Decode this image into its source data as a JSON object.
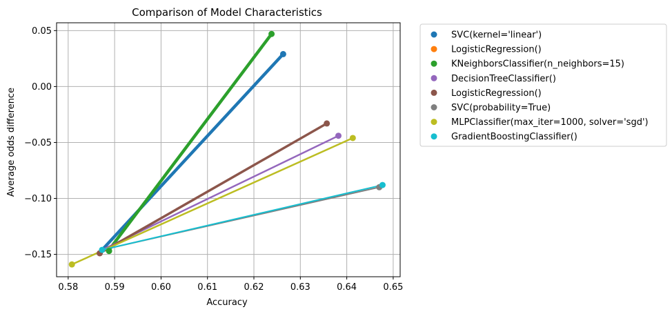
{
  "chart_data": {
    "type": "scatter",
    "title": "Comparison of Model Characteristics",
    "xlabel": "Accuracy",
    "ylabel": "Average odds difference",
    "xlim": [
      0.5775,
      0.6515
    ],
    "ylim": [
      -0.17,
      0.057
    ],
    "xticks": [
      0.58,
      0.59,
      0.6,
      0.61,
      0.62,
      0.63,
      0.64,
      0.65
    ],
    "xtick_labels": [
      "0.58",
      "0.59",
      "0.60",
      "0.61",
      "0.62",
      "0.63",
      "0.64",
      "0.65"
    ],
    "yticks": [
      -0.15,
      -0.1,
      -0.05,
      0.0,
      0.05
    ],
    "ytick_labels": [
      "−0.15",
      "−0.10",
      "−0.05",
      "0.00",
      "0.05"
    ],
    "grid": true,
    "legend_position": "outside-right",
    "series": [
      {
        "name": "SVC(kernel='linear')",
        "color": "#1f77b4",
        "linewidth": 4.5,
        "line_x": [
          0.5873,
          0.6263
        ],
        "line_y": [
          -0.146,
          0.029
        ],
        "points": [
          [
            0.6263,
            0.029
          ]
        ]
      },
      {
        "name": "LogisticRegression()",
        "color": "#ff7f0e",
        "linewidth": 2,
        "line_x": [],
        "line_y": [],
        "points": []
      },
      {
        "name": "KNeighborsClassifier(n_neighbors=15)",
        "color": "#2ca02c",
        "linewidth": 4.5,
        "line_x": [
          0.5888,
          0.6238
        ],
        "line_y": [
          -0.146,
          0.047
        ],
        "points": [
          [
            0.5888,
            -0.147
          ],
          [
            0.6238,
            0.047
          ]
        ]
      },
      {
        "name": "DecisionTreeClassifier()",
        "color": "#9467bd",
        "linewidth": 2.5,
        "line_x": [
          0.5873,
          0.6382
        ],
        "line_y": [
          -0.146,
          -0.044
        ],
        "points": [
          [
            0.6382,
            -0.044
          ]
        ]
      },
      {
        "name": "LogisticRegression()",
        "color": "#8c564b",
        "linewidth": 3.5,
        "line_x": [
          0.5868,
          0.6357
        ],
        "line_y": [
          -0.149,
          -0.033
        ],
        "points": [
          [
            0.5868,
            -0.149
          ],
          [
            0.6357,
            -0.033
          ]
        ]
      },
      {
        "name": "SVC(probability=True)",
        "color": "#7f7f7f",
        "linewidth": 2,
        "line_x": [
          0.5873,
          0.647
        ],
        "line_y": [
          -0.146,
          -0.09
        ],
        "points": [
          [
            0.647,
            -0.09
          ]
        ]
      },
      {
        "name": "MLPClassifier(max_iter=1000, solver='sgd')",
        "color": "#bcbd22",
        "linewidth": 2.5,
        "line_x": [
          0.5808,
          0.6413
        ],
        "line_y": [
          -0.159,
          -0.046
        ],
        "points": [
          [
            0.5808,
            -0.159
          ],
          [
            0.6413,
            -0.046
          ]
        ]
      },
      {
        "name": "GradientBoostingClassifier()",
        "color": "#17becf",
        "linewidth": 2,
        "line_x": [
          0.5873,
          0.6477
        ],
        "line_y": [
          -0.146,
          -0.088
        ],
        "points": [
          [
            0.5873,
            -0.146
          ],
          [
            0.6477,
            -0.088
          ]
        ]
      }
    ]
  }
}
